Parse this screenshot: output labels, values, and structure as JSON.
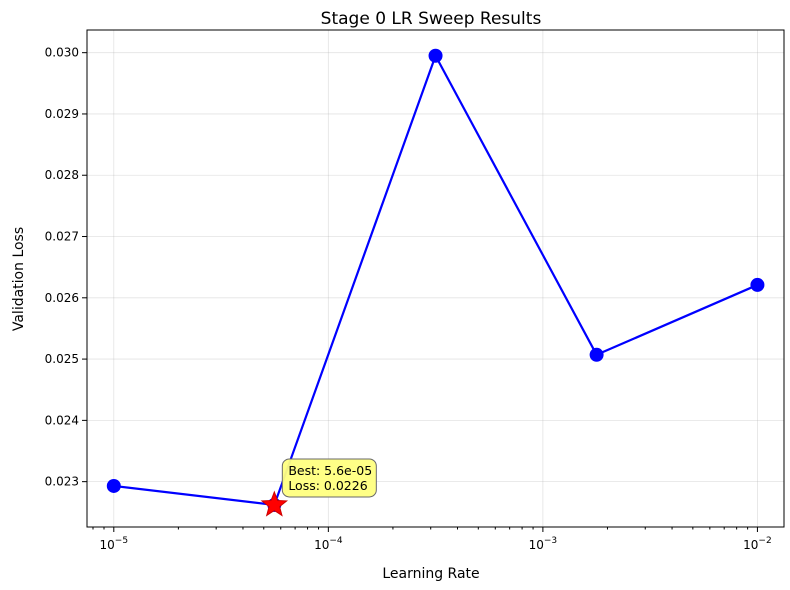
{
  "chart_data": {
    "type": "line",
    "title": "Stage 0 LR Sweep Results",
    "xlabel": "Learning Rate",
    "ylabel": "Validation Loss",
    "xscale": "log",
    "xlim": [
      7.5e-06,
      0.0133
    ],
    "ylim": [
      0.02226,
      0.03037
    ],
    "grid": true,
    "series": [
      {
        "x": [
          1e-05,
          5.6e-05,
          0.000316,
          0.00178,
          0.01
        ],
        "y": [
          0.02293,
          0.02262,
          0.02995,
          0.02507,
          0.02621
        ],
        "color": "#0000ff",
        "marker": "circle"
      }
    ],
    "best_point": {
      "x": 5.6e-05,
      "y": 0.02262,
      "color": "#ff0000",
      "marker": "star"
    },
    "annotation": {
      "lines": [
        "Best: 5.6e-05",
        "Loss: 0.0226"
      ],
      "box_color": "#ffff80"
    },
    "x_ticks": [
      {
        "value": 1e-05,
        "base": "10",
        "exp": "−5"
      },
      {
        "value": 0.0001,
        "base": "10",
        "exp": "−4"
      },
      {
        "value": 0.001,
        "base": "10",
        "exp": "−3"
      },
      {
        "value": 0.01,
        "base": "10",
        "exp": "−2"
      }
    ],
    "y_ticks": [
      {
        "value": 0.023,
        "label": "0.023"
      },
      {
        "value": 0.024,
        "label": "0.024"
      },
      {
        "value": 0.025,
        "label": "0.025"
      },
      {
        "value": 0.026,
        "label": "0.026"
      },
      {
        "value": 0.027,
        "label": "0.027"
      },
      {
        "value": 0.028,
        "label": "0.028"
      },
      {
        "value": 0.029,
        "label": "0.029"
      },
      {
        "value": 0.03,
        "label": "0.030"
      }
    ]
  }
}
